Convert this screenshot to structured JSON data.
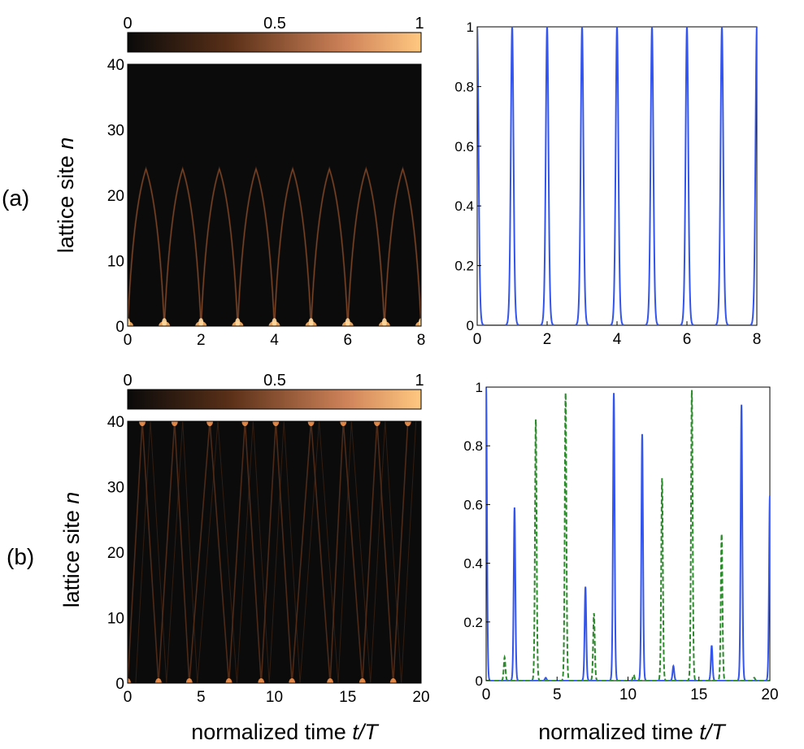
{
  "panel_labels": [
    "(a)",
    "(b)"
  ],
  "colorbar": {
    "ticks": [
      "0",
      "0.5",
      "1"
    ],
    "colors": [
      "#0a0a0a",
      "#5a3018",
      "#d0845a",
      "#ffc880"
    ]
  },
  "colors": {
    "series_blue": "#3355ee",
    "series_green": "#2d8a2d",
    "heat_bg": "#0b0b0b"
  },
  "x_label": {
    "main": "normalized time ",
    "italic": "t/T"
  },
  "y_label": {
    "main": "lattice site ",
    "italic": "n"
  },
  "chart_data": [
    {
      "type": "heatmap",
      "panel": "(a) left",
      "x_ticks": [
        "0",
        "2",
        "4",
        "6",
        "8"
      ],
      "y_ticks": [
        "0",
        "10",
        "20",
        "30",
        "40"
      ],
      "xlim": [
        0,
        8
      ],
      "ylim": [
        0,
        40
      ],
      "xlabel": "normalized time t/T",
      "ylabel": "lattice site n",
      "peak_times": [
        0,
        1,
        2,
        3,
        4,
        5,
        6,
        7,
        8
      ],
      "arch_max_site": 24
    },
    {
      "type": "line",
      "panel": "(a) right",
      "x_ticks": [
        "0",
        "2",
        "4",
        "6",
        "8"
      ],
      "y_ticks": [
        "0",
        "0.2",
        "0.4",
        "0.6",
        "0.8",
        "1"
      ],
      "xlim": [
        0,
        8
      ],
      "ylim": [
        0,
        1
      ],
      "series": [
        {
          "name": "blue",
          "style": "solid",
          "peaks": [
            [
              0,
              1
            ],
            [
              1,
              1
            ],
            [
              2,
              1
            ],
            [
              3,
              1
            ],
            [
              4,
              1
            ],
            [
              5,
              1
            ],
            [
              6,
              1
            ],
            [
              7,
              1
            ],
            [
              8,
              1
            ]
          ]
        }
      ]
    },
    {
      "type": "heatmap",
      "panel": "(b) left",
      "x_ticks": [
        "0",
        "5",
        "10",
        "15",
        "20"
      ],
      "y_ticks": [
        "0",
        "10",
        "20",
        "30",
        "40"
      ],
      "xlim": [
        0,
        20
      ],
      "ylim": [
        0,
        40
      ],
      "xlabel": "normalized time t/T",
      "ylabel": "lattice site n",
      "bottom_hits": [
        0,
        2.1,
        4.2,
        6.9,
        9.1,
        11.2,
        13.8,
        16.0,
        18.1
      ],
      "top_hits": [
        1.0,
        3.2,
        5.6,
        8.0,
        10.1,
        12.5,
        14.7,
        17.0,
        19.1
      ]
    },
    {
      "type": "line",
      "panel": "(b) right",
      "x_ticks": [
        "0",
        "5",
        "10",
        "15",
        "20"
      ],
      "y_ticks": [
        "0",
        "0.2",
        "0.4",
        "0.6",
        "0.8",
        "1"
      ],
      "xlim": [
        0,
        20
      ],
      "ylim": [
        0,
        1
      ],
      "xlabel": "normalized time t/T",
      "series": [
        {
          "name": "blue",
          "style": "solid",
          "peaks": [
            [
              0,
              1.0
            ],
            [
              2.0,
              0.59
            ],
            [
              4.2,
              0.01
            ],
            [
              7.0,
              0.32
            ],
            [
              9.0,
              0.98
            ],
            [
              11.0,
              0.84
            ],
            [
              13.2,
              0.05
            ],
            [
              15.9,
              0.12
            ],
            [
              18.0,
              0.94
            ],
            [
              20.0,
              0.63
            ]
          ]
        },
        {
          "name": "green",
          "style": "dashed",
          "peaks": [
            [
              1.3,
              0.08
            ],
            [
              3.5,
              0.89
            ],
            [
              5.6,
              0.98
            ],
            [
              7.6,
              0.23
            ],
            [
              10.4,
              0.02
            ],
            [
              12.4,
              0.69
            ],
            [
              14.5,
              0.99
            ],
            [
              16.6,
              0.5
            ],
            [
              18.9,
              0.01
            ]
          ]
        }
      ]
    }
  ]
}
